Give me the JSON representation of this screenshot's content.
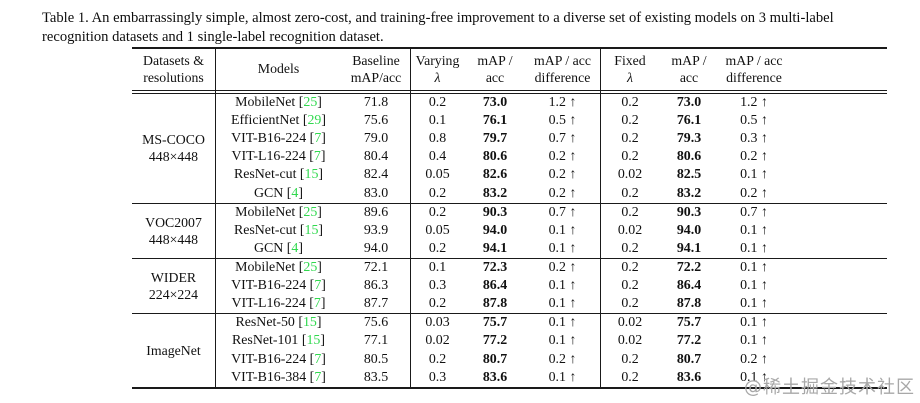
{
  "caption": {
    "line1": "Table 1. An embarrassingly simple, almost zero-cost, and training-free improvement to a diverse set of existing models on 3 multi-label",
    "line2": "recognition datasets and 1 single-label recognition dataset."
  },
  "colors": {
    "citation_green": "#30d94e",
    "rule_black": "#1a1a1a",
    "watermark_gray": "#a8a8a8"
  },
  "watermark": "@稀土掘金技术社区",
  "table": {
    "headers": [
      {
        "lines": [
          "Datasets &",
          "resolutions"
        ]
      },
      {
        "lines": [
          "Models"
        ]
      },
      {
        "lines": [
          "Baseline",
          "mAP/acc"
        ]
      },
      {
        "lines": [
          "Varying",
          "λ"
        ],
        "math": true
      },
      {
        "lines": [
          "mAP /",
          "acc"
        ]
      },
      {
        "lines": [
          "mAP / acc",
          "difference"
        ]
      },
      {
        "lines": [
          "Fixed",
          "λ"
        ],
        "math": true
      },
      {
        "lines": [
          "mAP /",
          "acc"
        ]
      },
      {
        "lines": [
          "mAP / acc",
          "difference"
        ]
      }
    ],
    "sections": [
      {
        "dataset": "MS-COCO",
        "resolution": "448×448",
        "rows": [
          {
            "model": "MobileNet",
            "cite": "25",
            "baseline": "71.8",
            "varying_lambda": "0.2",
            "varying_map": "73.0",
            "varying_diff": "1.2 ↑",
            "fixed_lambda": "0.2",
            "fixed_map": "73.0",
            "fixed_diff": "1.2 ↑"
          },
          {
            "model": "EfficientNet",
            "cite": "29",
            "baseline": "75.6",
            "varying_lambda": "0.1",
            "varying_map": "76.1",
            "varying_diff": "0.5 ↑",
            "fixed_lambda": "0.2",
            "fixed_map": "76.1",
            "fixed_diff": "0.5 ↑"
          },
          {
            "model": "VIT-B16-224",
            "cite": "7",
            "baseline": "79.0",
            "varying_lambda": "0.8",
            "varying_map": "79.7",
            "varying_diff": "0.7 ↑",
            "fixed_lambda": "0.2",
            "fixed_map": "79.3",
            "fixed_diff": "0.3 ↑"
          },
          {
            "model": "VIT-L16-224",
            "cite": "7",
            "baseline": "80.4",
            "varying_lambda": "0.4",
            "varying_map": "80.6",
            "varying_diff": "0.2 ↑",
            "fixed_lambda": "0.2",
            "fixed_map": "80.6",
            "fixed_diff": "0.2 ↑"
          },
          {
            "model": "ResNet-cut",
            "cite": "15",
            "baseline": "82.4",
            "varying_lambda": "0.05",
            "varying_map": "82.6",
            "varying_diff": "0.2 ↑",
            "fixed_lambda": "0.02",
            "fixed_map": "82.5",
            "fixed_diff": "0.1 ↑"
          },
          {
            "model": "GCN",
            "cite": "4",
            "baseline": "83.0",
            "varying_lambda": "0.2",
            "varying_map": "83.2",
            "varying_diff": "0.2 ↑",
            "fixed_lambda": "0.2",
            "fixed_map": "83.2",
            "fixed_diff": "0.2 ↑"
          }
        ]
      },
      {
        "dataset": "VOC2007",
        "resolution": "448×448",
        "rows": [
          {
            "model": "MobileNet",
            "cite": "25",
            "baseline": "89.6",
            "varying_lambda": "0.2",
            "varying_map": "90.3",
            "varying_diff": "0.7 ↑",
            "fixed_lambda": "0.2",
            "fixed_map": "90.3",
            "fixed_diff": "0.7 ↑"
          },
          {
            "model": "ResNet-cut",
            "cite": "15",
            "baseline": "93.9",
            "varying_lambda": "0.05",
            "varying_map": "94.0",
            "varying_diff": "0.1 ↑",
            "fixed_lambda": "0.02",
            "fixed_map": "94.0",
            "fixed_diff": "0.1 ↑"
          },
          {
            "model": "GCN",
            "cite": "4",
            "baseline": "94.0",
            "varying_lambda": "0.2",
            "varying_map": "94.1",
            "varying_diff": "0.1 ↑",
            "fixed_lambda": "0.2",
            "fixed_map": "94.1",
            "fixed_diff": "0.1 ↑"
          }
        ]
      },
      {
        "dataset": "WIDER",
        "resolution": "224×224",
        "rows": [
          {
            "model": "MobileNet",
            "cite": "25",
            "baseline": "72.1",
            "varying_lambda": "0.1",
            "varying_map": "72.3",
            "varying_diff": "0.2 ↑",
            "fixed_lambda": "0.2",
            "fixed_map": "72.2",
            "fixed_diff": "0.1 ↑"
          },
          {
            "model": "VIT-B16-224",
            "cite": "7",
            "baseline": "86.3",
            "varying_lambda": "0.3",
            "varying_map": "86.4",
            "varying_diff": "0.1 ↑",
            "fixed_lambda": "0.2",
            "fixed_map": "86.4",
            "fixed_diff": "0.1 ↑"
          },
          {
            "model": "VIT-L16-224",
            "cite": "7",
            "baseline": "87.7",
            "varying_lambda": "0.2",
            "varying_map": "87.8",
            "varying_diff": "0.1 ↑",
            "fixed_lambda": "0.2",
            "fixed_map": "87.8",
            "fixed_diff": "0.1 ↑"
          }
        ]
      },
      {
        "dataset": "ImageNet",
        "resolution": "",
        "rows": [
          {
            "model": "ResNet-50",
            "cite": "15",
            "baseline": "75.6",
            "varying_lambda": "0.03",
            "varying_map": "75.7",
            "varying_diff": "0.1 ↑",
            "fixed_lambda": "0.02",
            "fixed_map": "75.7",
            "fixed_diff": "0.1 ↑"
          },
          {
            "model": "ResNet-101",
            "cite": "15",
            "baseline": "77.1",
            "varying_lambda": "0.02",
            "varying_map": "77.2",
            "varying_diff": "0.1 ↑",
            "fixed_lambda": "0.02",
            "fixed_map": "77.2",
            "fixed_diff": "0.1 ↑"
          },
          {
            "model": "VIT-B16-224",
            "cite": "7",
            "baseline": "80.5",
            "varying_lambda": "0.2",
            "varying_map": "80.7",
            "varying_diff": "0.2 ↑",
            "fixed_lambda": "0.2",
            "fixed_map": "80.7",
            "fixed_diff": "0.2 ↑"
          },
          {
            "model": "VIT-B16-384",
            "cite": "7",
            "baseline": "83.5",
            "varying_lambda": "0.3",
            "varying_map": "83.6",
            "varying_diff": "0.1 ↑",
            "fixed_lambda": "0.2",
            "fixed_map": "83.6",
            "fixed_diff": "0.1 ↑"
          }
        ]
      }
    ]
  }
}
